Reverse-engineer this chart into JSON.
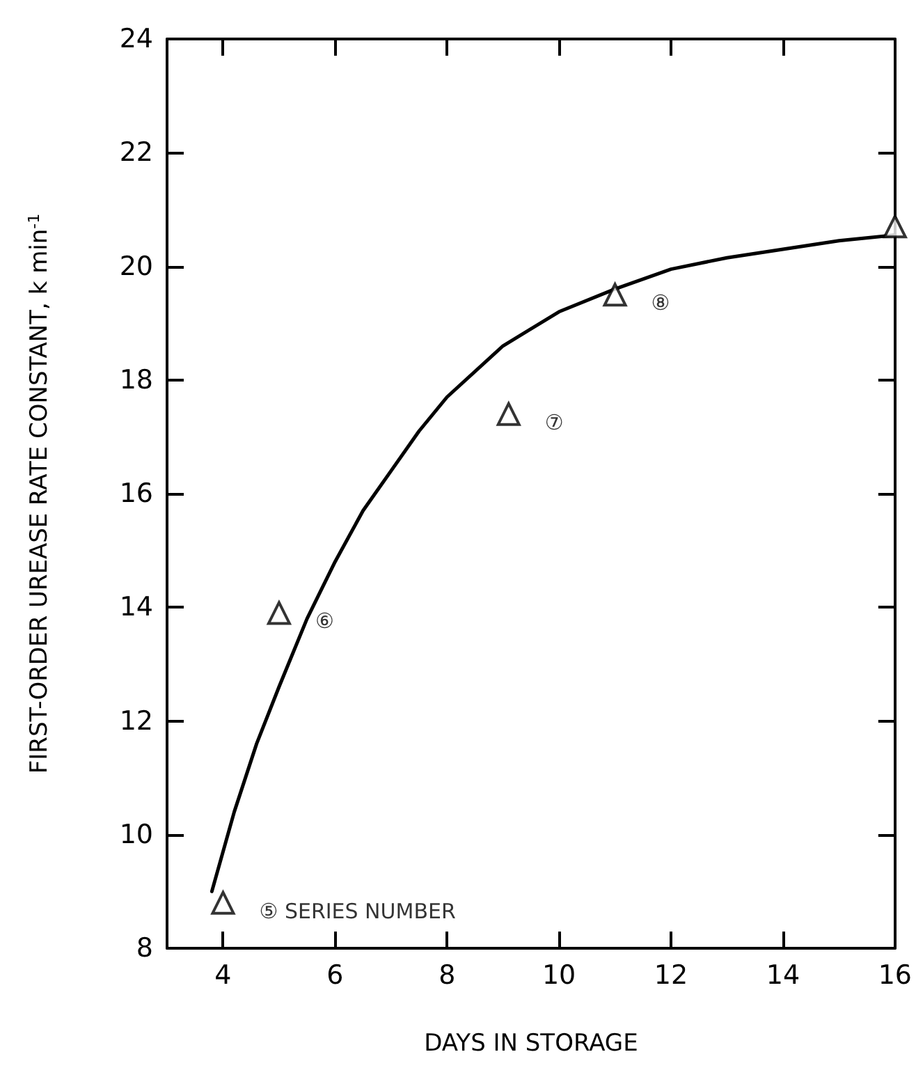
{
  "chart_data": {
    "type": "scatter",
    "xlabel": "DAYS IN STORAGE",
    "ylabel": "FIRST-ORDER UREASE RATE CONSTANT, k min$^{-1}$",
    "xlim": [
      3,
      16
    ],
    "ylim": [
      8,
      24
    ],
    "xticks": [
      4,
      6,
      8,
      10,
      12,
      14,
      16
    ],
    "yticks": [
      8,
      10,
      12,
      14,
      16,
      18,
      20,
      22,
      24
    ],
    "grid": false,
    "series": [
      {
        "color": "#000000",
        "marker": "triangle",
        "x": [
          4,
          5,
          9.1,
          11,
          16
        ],
        "values": [
          8.8,
          13.9,
          17.4,
          19.5,
          20.7
        ]
      },
      {
        "type": "line",
        "color": "#000000",
        "marker": "none",
        "line_style": "solid",
        "x": [
          3.8,
          4.2,
          4.6,
          5,
          5.5,
          6,
          6.5,
          7,
          7.5,
          8,
          9,
          10,
          11,
          12,
          13,
          14,
          15,
          16
        ],
        "values": [
          9.0,
          10.4,
          11.6,
          12.6,
          13.8,
          14.8,
          15.7,
          16.4,
          17.1,
          17.7,
          18.6,
          19.2,
          19.6,
          19.95,
          20.15,
          20.3,
          20.45,
          20.55
        ]
      }
    ],
    "annotations": [
      {
        "text": "⑤ SERIES NUMBER",
        "x": 4,
        "y": 8.8
      },
      {
        "text": "⑥",
        "x": 5,
        "y": 13.9
      },
      {
        "text": "⑦",
        "x": 9.1,
        "y": 17.4
      },
      {
        "text": "⑧",
        "x": 11,
        "y": 19.5
      }
    ]
  }
}
